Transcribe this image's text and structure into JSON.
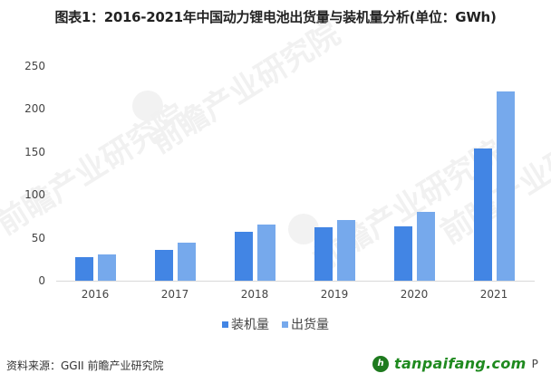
{
  "title": "图表1：2016-2021年中国动力锂电池出货量与装机量分析(单位：GWh)",
  "watermark": {
    "text": "前瞻产业研究院"
  },
  "colors": {
    "series1": "#4285e4",
    "series2": "#76a9ec",
    "axis": "#d9d9d9",
    "logo": "#1f8a1f"
  },
  "chart_data": {
    "type": "bar",
    "title": "图表1：2016-2021年中国动力锂电池出货量与装机量分析(单位：GWh)",
    "xlabel": "",
    "ylabel": "",
    "categories": [
      "2016",
      "2017",
      "2018",
      "2019",
      "2020",
      "2021"
    ],
    "series": [
      {
        "name": "装机量",
        "values": [
          27.7,
          36.3,
          57.4,
          62.2,
          63.3,
          154.5
        ]
      },
      {
        "name": "出货量",
        "values": [
          30.8,
          44.5,
          65,
          71,
          80,
          220
        ]
      }
    ],
    "ylim": [
      0,
      250
    ],
    "yticks": [
      "0",
      "50",
      "100",
      "150",
      "200",
      "250"
    ],
    "grid": false,
    "legend_position": "bottom"
  },
  "legend": [
    {
      "label": "装机量"
    },
    {
      "label": "出货量"
    }
  ],
  "footer": {
    "source": "资料来源：GGII 前瞻产业研究院",
    "logo_text": "tanpaifang.com",
    "logo_suffix": "P"
  }
}
